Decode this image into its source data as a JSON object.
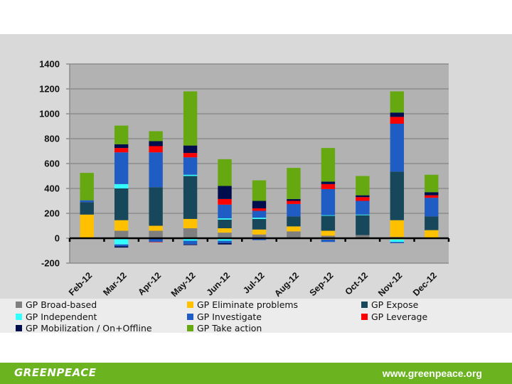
{
  "chart_data": {
    "type": "bar",
    "stacked": true,
    "title": "",
    "xlabel": "",
    "ylabel": "",
    "ylim": [
      -200,
      1400
    ],
    "yticks": [
      -200,
      0,
      200,
      400,
      600,
      800,
      1000,
      1200,
      1400
    ],
    "ytick_labels": [
      "-200",
      "0",
      "200",
      "400",
      "600",
      "800",
      "1000",
      "1200",
      "1400"
    ],
    "grid": true,
    "legend_position": "bottom",
    "categories": [
      "Feb-12",
      "Mar-12",
      "Apr-12",
      "May-12",
      "Jun-12",
      "Jul-12",
      "Aug-12",
      "Sep-12",
      "Oct-12",
      "Nov-12",
      "Dec-12"
    ],
    "series": [
      {
        "name": "GP Broad-based",
        "color": "#7f7f7f",
        "values": [
          0,
          60,
          60,
          80,
          45,
          30,
          55,
          20,
          25,
          10,
          0
        ],
        "negative": [
          0,
          0,
          0,
          0,
          0,
          0,
          0,
          -5,
          0,
          -5,
          0
        ]
      },
      {
        "name": "GP Eliminate problems",
        "color": "#ffc000",
        "values": [
          190,
          85,
          40,
          75,
          35,
          40,
          40,
          40,
          0,
          135,
          65
        ],
        "negative": [
          0,
          -5,
          0,
          0,
          -5,
          0,
          0,
          -5,
          0,
          -5,
          0
        ]
      },
      {
        "name": "GP Expose",
        "color": "#17475b",
        "values": [
          100,
          255,
          310,
          345,
          70,
          85,
          80,
          120,
          160,
          390,
          110
        ],
        "negative": [
          0,
          0,
          0,
          0,
          0,
          0,
          -5,
          0,
          -5,
          0,
          0
        ]
      },
      {
        "name": "GP Independent",
        "color": "#33ffff",
        "values": [
          0,
          35,
          0,
          10,
          10,
          10,
          0,
          5,
          5,
          0,
          0
        ],
        "negative": [
          0,
          -45,
          0,
          -20,
          -15,
          -5,
          0,
          0,
          0,
          -20,
          0
        ]
      },
      {
        "name": "GP Investigate",
        "color": "#1f5cc4",
        "values": [
          15,
          255,
          280,
          140,
          110,
          55,
          100,
          210,
          110,
          385,
          150
        ],
        "negative": [
          0,
          -15,
          -30,
          -30,
          -20,
          -10,
          0,
          -20,
          0,
          -10,
          0
        ]
      },
      {
        "name": "GP Leverage",
        "color": "#ff0000",
        "values": [
          0,
          35,
          50,
          35,
          45,
          20,
          25,
          40,
          30,
          55,
          20
        ],
        "negative": [
          0,
          0,
          -3,
          0,
          0,
          0,
          0,
          0,
          0,
          0,
          0
        ]
      },
      {
        "name": "GP Mobilization / On+Offline",
        "color": "#000d4d",
        "values": [
          0,
          30,
          40,
          60,
          105,
          60,
          15,
          20,
          15,
          35,
          25
        ],
        "negative": [
          0,
          -10,
          0,
          -5,
          -10,
          0,
          0,
          0,
          0,
          0,
          0
        ]
      },
      {
        "name": "GP Take action",
        "color": "#66a80f",
        "values": [
          220,
          150,
          80,
          435,
          215,
          165,
          250,
          270,
          155,
          170,
          140
        ],
        "negative": [
          0,
          0,
          0,
          0,
          0,
          0,
          0,
          0,
          0,
          0,
          0
        ]
      }
    ]
  },
  "footer": {
    "logo_text": "GREENPEACE",
    "url": "www.greenpeace.org"
  }
}
